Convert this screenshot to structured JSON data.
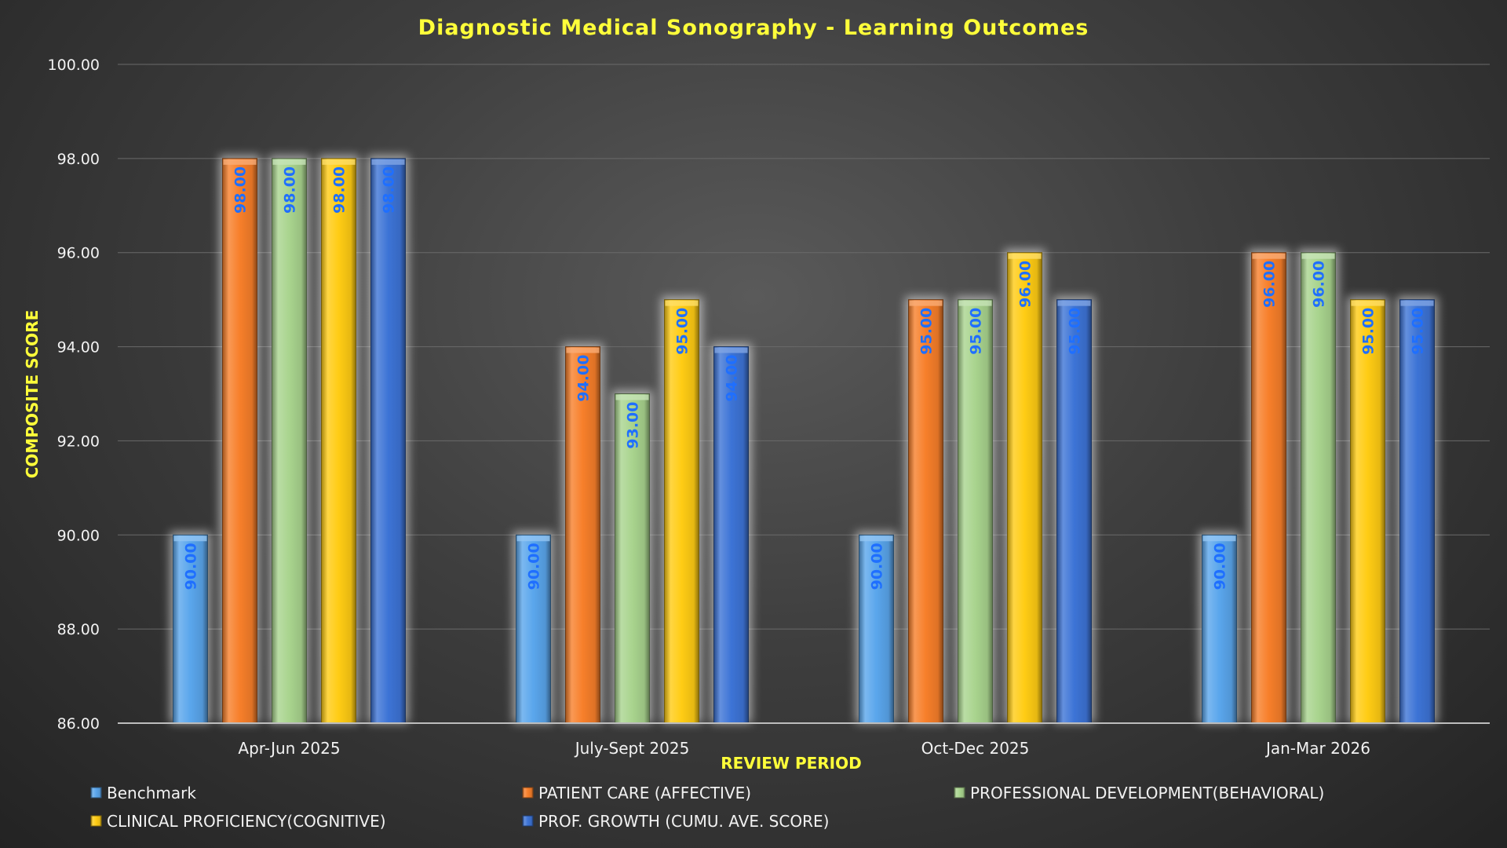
{
  "chart_data": {
    "type": "bar",
    "title": "Diagnostic Medical Sonography - Learning Outcomes",
    "xlabel": "REVIEW PERIOD",
    "ylabel": "COMPOSITE SCORE",
    "ylim": [
      86,
      100
    ],
    "yticks": [
      "86.00",
      "88.00",
      "90.00",
      "92.00",
      "94.00",
      "96.00",
      "98.00",
      "100.00"
    ],
    "grid": true,
    "legend_position": "bottom",
    "categories": [
      "Apr-Jun 2025",
      "July-Sept 2025",
      "Oct-Dec 2025",
      "Jan-Mar 2026"
    ],
    "series": [
      {
        "name": "Benchmark",
        "color": "#5aa6ec",
        "values": [
          90,
          90,
          90,
          90
        ],
        "labels": [
          "90.00",
          "90.00",
          "90.00",
          "90.00"
        ]
      },
      {
        "name": "PATIENT CARE (AFFECTIVE)",
        "color": "#f77f2a",
        "values": [
          98,
          94,
          95,
          96
        ],
        "labels": [
          "98.00",
          "94.00",
          "95.00",
          "96.00"
        ]
      },
      {
        "name": "PROFESSIONAL DEVELOPMENT(BEHAVIORAL)",
        "color": "#a9d48e",
        "values": [
          98,
          93,
          95,
          96
        ],
        "labels": [
          "98.00",
          "93.00",
          "95.00",
          "96.00"
        ]
      },
      {
        "name": "CLINICAL PROFICIENCY(COGNITIVE)",
        "color": "#ffcc14",
        "values": [
          98,
          95,
          96,
          95
        ],
        "labels": [
          "98.00",
          "95.00",
          "96.00",
          "95.00"
        ]
      },
      {
        "name": "PROF. GROWTH (CUMU. AVE. SCORE)",
        "color": "#3d74d6",
        "values": [
          98,
          94,
          95,
          95
        ],
        "labels": [
          "98.00",
          "94.00",
          "95.00",
          "95.00"
        ]
      }
    ],
    "data_label_color": "#1f6fff"
  }
}
